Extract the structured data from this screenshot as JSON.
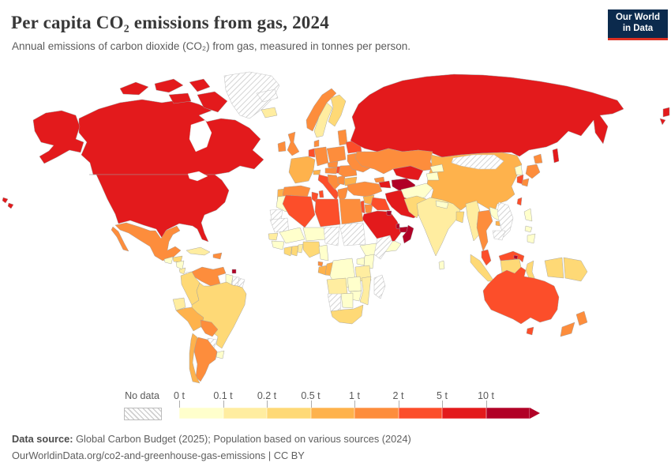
{
  "header": {
    "title": "Per capita CO₂ emissions from gas, 2024",
    "subtitle": "Annual emissions of carbon dioxide (CO₂) from gas, measured in tonnes per person.",
    "logo": {
      "line1": "Our World",
      "line2": "in Data",
      "bg_color": "#0b2a4d",
      "accent_color": "#dc3022"
    }
  },
  "legend": {
    "no_data_label": "No data",
    "ticks": [
      "0 t",
      "0.1 t",
      "0.2 t",
      "0.5 t",
      "1 t",
      "2 t",
      "5 t",
      "10 t"
    ],
    "bins": [
      "0-0.1",
      "0.1-0.2",
      "0.2-0.5",
      "0.5-1",
      "1-2",
      "2-5",
      "5-10",
      "10+"
    ]
  },
  "palette": {
    "0-0.1": "#ffffcc",
    "0.1-0.2": "#ffeda0",
    "0.2-0.5": "#fed976",
    "0.5-1": "#feb24c",
    "1-2": "#fd8d3c",
    "2-5": "#fc4e2a",
    "5-10": "#e31a1c",
    "10+": "#b10026",
    "no-data": "hatch"
  },
  "footer": {
    "source_label": "Data source:",
    "source_text": " Global Carbon Budget (2025); Population based on various sources (2024)",
    "link_text": "OurWorldinData.org/co2-and-greenhouse-gas-emissions | CC BY"
  },
  "chart_data": {
    "type": "choropleth",
    "title": "Per capita CO₂ emissions from gas, 2024",
    "unit": "tonnes per person",
    "bins": [
      "0-0.1",
      "0.1-0.2",
      "0.2-0.5",
      "0.5-1",
      "1-2",
      "2-5",
      "5-10",
      "10+",
      "no-data"
    ]
  },
  "map": {
    "regions": {
      "united-states": "5-10",
      "canada": "5-10",
      "greenland": "no-data",
      "svalbard": "no-data",
      "mexico": "1-2",
      "guatemala": "0-0.1",
      "honduras": "0.2-0.5",
      "nicaragua": "0-0.1",
      "costa-rica": "0.1-0.2",
      "panama": "no-data",
      "cuba": "0.1-0.2",
      "dominican-republic": "1-2",
      "trinidad-and-tobago": "10+",
      "venezuela": "1-2",
      "colombia": "0.2-0.5",
      "ecuador": "0.1-0.2",
      "guyana": "0-0.1",
      "suriname": "no-data",
      "french-guiana": "no-data",
      "brazil": "0.2-0.5",
      "peru": "0.5-1",
      "bolivia": "1-2",
      "paraguay": "no-data",
      "uruguay": "0-0.1",
      "argentina": "1-2",
      "chile": "0.5-1",
      "iceland": "0.1-0.2",
      "ireland": "1-2",
      "united-kingdom": "1-2",
      "norway": "1-2",
      "sweden": "0.1-0.2",
      "finland": "0.2-0.5",
      "denmark": "1-2",
      "baltic-states": "1-2",
      "poland": "1-2",
      "germany": "1-2",
      "benelux": "2-5",
      "france": "0.5-1",
      "switzerland": "0.5-1",
      "czechia": "1-2",
      "austria": "1-2",
      "hungary": "2-5",
      "portugal": "0.5-1",
      "spain": "1-2",
      "italy": "2-5",
      "croatia-bosnia": "1-2",
      "serbia": "1-2",
      "greece": "1-2",
      "bulgaria": "0.5-1",
      "romania": "1-2",
      "belarus": "2-5",
      "ukraine": "1-2",
      "russia": "5-10",
      "turkey": "1-2",
      "georgia": "1-2",
      "azerbaijan": "5-10",
      "syria": "0.5-1",
      "israel-lebanon": "2-5",
      "jordan": "1-2",
      "iraq": "2-5",
      "saudi-arabia": "5-10",
      "kuwait": "10+",
      "qatar": "10+",
      "united-arab-emirates": "10+",
      "oman": "10+",
      "yemen": "0-0.1",
      "iran": "5-10",
      "turkmenistan": "10+",
      "uzbekistan": "5-10",
      "kazakhstan": "1-2",
      "kyrgyzstan": "0-0.1",
      "tajikistan": "0-0.1",
      "afghanistan": "0-0.1",
      "pakistan": "0.2-0.5",
      "india": "0.1-0.2",
      "nepal": "0-0.1",
      "bangladesh": "0.2-0.5",
      "sri-lanka": "0-0.1",
      "myanmar": "0.1-0.2",
      "thailand": "1-2",
      "laos": "0-0.1",
      "vietnam": "no-data",
      "cambodia": "no-data",
      "malaysia": "2-5",
      "brunei": "10+",
      "indonesia": "0.2-0.5",
      "papua-new-guinea": "0.2-0.5",
      "philippines": "0-0.1",
      "taiwan": "2-5",
      "china": "0.5-1",
      "mongolia": "no-data",
      "north-korea": "0-0.1",
      "south-korea": "2-5",
      "japan": "1-2",
      "australia": "2-5",
      "new-zealand": "1-2",
      "morocco": "0-0.1",
      "western-sahara": "no-data",
      "algeria": "2-5",
      "tunisia": "2-5",
      "libya": "2-5",
      "egypt": "1-2",
      "mauritania": "no-data",
      "mali": "0-0.1",
      "niger": "0-0.1",
      "chad": "no-data",
      "sudan": "no-data",
      "ethiopia": "0-0.1",
      "somalia": "no-data",
      "senegal": "0.1-0.2",
      "guinea": "0-0.1",
      "ivory-coast": "0.2-0.5",
      "ghana": "0.2-0.5",
      "benin-togo": "0.1-0.2",
      "nigeria": "0.2-0.5",
      "cameroon": "0-0.1",
      "equatorial-guinea": "1-2",
      "gabon": "0.5-1",
      "congo": "0.5-1",
      "dr-congo": "0-0.1",
      "uganda": "0-0.1",
      "kenya": "0-0.1",
      "tanzania": "0.1-0.2",
      "angola": "0.1-0.2",
      "zambia": "0-0.1",
      "mozambique": "0.1-0.2",
      "zimbabwe": "0-0.1",
      "botswana": "0-0.1",
      "namibia": "no-data",
      "south-africa": "0.2-0.5",
      "madagascar": "no-data"
    }
  }
}
